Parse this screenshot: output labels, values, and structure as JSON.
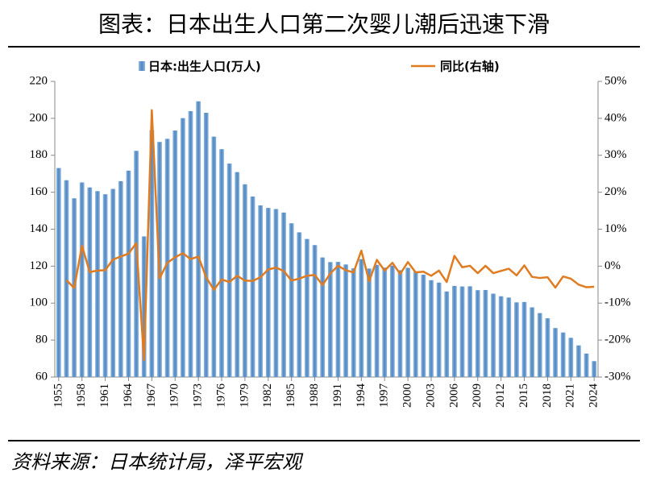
{
  "chart_data": {
    "type": "bar",
    "title": "图表：日本出生人口第二次婴儿潮后迅速下滑",
    "source": "资料来源：日本统计局，泽平宏观",
    "categories": [
      "1955",
      null,
      null,
      "1958",
      null,
      null,
      "1961",
      null,
      null,
      "1964",
      null,
      null,
      "1967",
      null,
      null,
      "1970",
      null,
      null,
      "1973",
      null,
      null,
      "1976",
      null,
      null,
      "1979",
      null,
      null,
      "1982",
      null,
      null,
      "1985",
      null,
      null,
      "1988",
      null,
      null,
      "1991",
      null,
      null,
      "1994",
      null,
      null,
      "1997",
      null,
      null,
      "2000",
      null,
      null,
      "2003",
      null,
      null,
      "2006",
      null,
      null,
      "2009",
      null,
      null,
      "2012",
      null,
      null,
      "2015",
      null,
      null,
      "2018",
      null,
      null,
      "2021",
      null,
      null,
      "2024"
    ],
    "series": [
      {
        "name": "日本:出生人口(万人)",
        "type": "bar",
        "color": "#5b9bd5",
        "values": [
          173.1,
          166.5,
          156.7,
          165.3,
          162.6,
          160.6,
          158.9,
          161.8,
          166.0,
          171.7,
          182.4,
          136.1,
          193.6,
          187.2,
          188.9,
          193.4,
          200.1,
          203.9,
          209.2,
          203.0,
          190.1,
          183.3,
          175.5,
          170.9,
          164.3,
          157.7,
          152.9,
          151.5,
          150.9,
          149.0,
          143.2,
          138.3,
          134.7,
          131.4,
          124.7,
          122.2,
          122.3,
          120.9,
          118.8,
          123.8,
          118.7,
          120.7,
          119.2,
          120.3,
          117.8,
          119.1,
          117.1,
          115.4,
          112.4,
          111.1,
          106.3,
          109.3,
          109.0,
          109.1,
          107.0,
          107.1,
          105.1,
          103.7,
          103.0,
          100.4,
          100.6,
          97.7,
          94.6,
          91.8,
          86.5,
          84.1,
          81.2,
          77.1,
          72.7,
          68.6
        ]
      },
      {
        "name": "同比(右轴)",
        "type": "line",
        "axis": "y2",
        "color": "#e07b20",
        "values": [
          null,
          -3.8,
          -5.9,
          5.5,
          -1.6,
          -1.2,
          -1.1,
          1.8,
          2.6,
          3.4,
          6.2,
          -25.4,
          42.2,
          -3.3,
          0.9,
          2.4,
          3.5,
          1.9,
          2.6,
          -3.0,
          -6.4,
          -3.6,
          -4.3,
          -2.6,
          -3.9,
          -4.0,
          -3.0,
          -0.9,
          -0.4,
          -1.3,
          -3.9,
          -3.4,
          -2.6,
          -2.4,
          -5.1,
          -2.0,
          0.1,
          -1.1,
          -1.7,
          4.2,
          -4.1,
          1.7,
          -1.2,
          0.9,
          -2.1,
          1.1,
          -1.7,
          -1.5,
          -2.6,
          -1.2,
          -4.3,
          2.8,
          -0.3,
          0.1,
          -1.9,
          0.1,
          -1.9,
          -1.3,
          -0.7,
          -2.5,
          0.2,
          -2.9,
          -3.2,
          -3.0,
          -5.8,
          -2.8,
          -3.4,
          -5.0,
          -5.7,
          -5.6
        ]
      }
    ],
    "ylim": [
      60,
      220
    ],
    "yticks": [
      60,
      80,
      100,
      120,
      140,
      160,
      180,
      200,
      220
    ],
    "y2lim": [
      -30,
      50
    ],
    "y2ticks": [
      {
        "value": -30,
        "label": "-30%"
      },
      {
        "value": -20,
        "label": "-20%"
      },
      {
        "value": -10,
        "label": "-10%"
      },
      {
        "value": 0,
        "label": "0%"
      },
      {
        "value": 10,
        "label": "10%"
      },
      {
        "value": 20,
        "label": "20%"
      },
      {
        "value": 30,
        "label": "30%"
      },
      {
        "value": 40,
        "label": "40%"
      },
      {
        "value": 50,
        "label": "50%"
      }
    ],
    "legend": "top"
  }
}
